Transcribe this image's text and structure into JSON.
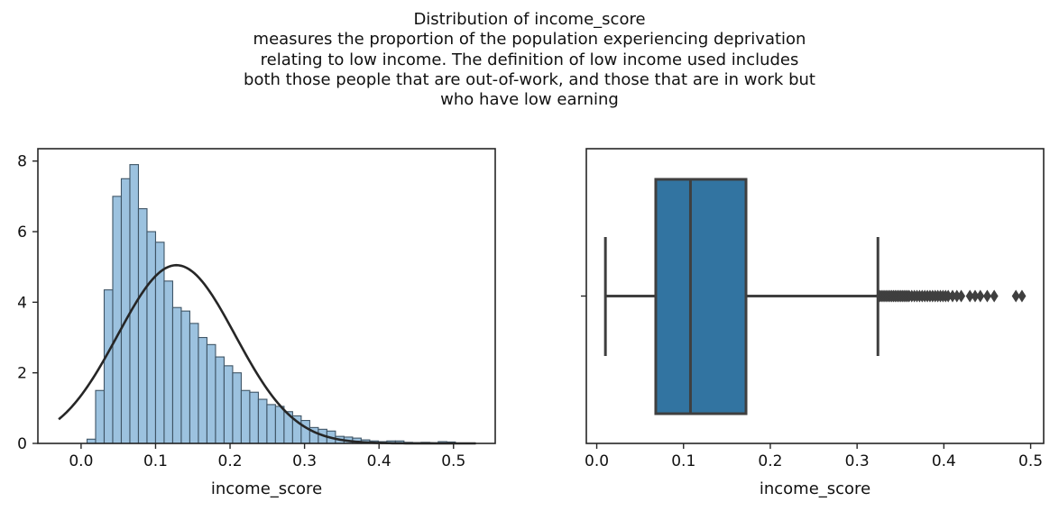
{
  "title": {
    "lines": [
      "Distribution of income_score",
      "measures the proportion of the population experiencing deprivation",
      "relating to low income. The definition of low income used includes",
      "both those people that are out-of-work, and those that are in work but",
      "who have low earning"
    ]
  },
  "chart_data": [
    {
      "type": "histogram",
      "xlabel": "income_score",
      "ylabel": "",
      "xlim": [
        -0.058,
        0.556
      ],
      "ylim": [
        0,
        8.35
      ],
      "xticks": [
        "0.0",
        "0.1",
        "0.2",
        "0.3",
        "0.4",
        "0.5"
      ],
      "xtick_values": [
        0.0,
        0.1,
        0.2,
        0.3,
        0.4,
        0.5
      ],
      "yticks": [
        "0",
        "2",
        "4",
        "6",
        "8"
      ],
      "ytick_values": [
        0,
        2,
        4,
        6,
        8
      ],
      "bin_start": 0.008,
      "bin_width": 0.0115,
      "densities": [
        0.12,
        1.5,
        4.35,
        7.0,
        7.5,
        7.9,
        6.65,
        6.0,
        5.7,
        4.6,
        3.85,
        3.75,
        3.4,
        3.0,
        2.8,
        2.45,
        2.2,
        2.0,
        1.5,
        1.45,
        1.25,
        1.1,
        1.05,
        0.9,
        0.78,
        0.65,
        0.45,
        0.4,
        0.35,
        0.2,
        0.18,
        0.15,
        0.1,
        0.07,
        0.05,
        0.07,
        0.07,
        0.03,
        0.02,
        0.03,
        0.02,
        0.05,
        0.04,
        0.0,
        0.01
      ],
      "fit_curve": {
        "mean": 0.128,
        "std": 0.079,
        "x_start": -0.03,
        "x_end": 0.53
      },
      "colors": {
        "bar_fill": "#9cc2df",
        "bar_edge": "#3f5566",
        "curve": "#262626"
      }
    },
    {
      "type": "box",
      "xlabel": "income_score",
      "xlim": [
        -0.012,
        0.515
      ],
      "xticks": [
        "0.0",
        "0.1",
        "0.2",
        "0.3",
        "0.4",
        "0.5"
      ],
      "xtick_values": [
        0.0,
        0.1,
        0.2,
        0.3,
        0.4,
        0.5
      ],
      "whisker_low": 0.01,
      "q1": 0.068,
      "median": 0.108,
      "q3": 0.172,
      "whisker_high": 0.324,
      "outliers": [
        0.326,
        0.328,
        0.33,
        0.332,
        0.334,
        0.336,
        0.338,
        0.34,
        0.342,
        0.344,
        0.346,
        0.348,
        0.35,
        0.352,
        0.354,
        0.356,
        0.358,
        0.36,
        0.363,
        0.366,
        0.369,
        0.372,
        0.375,
        0.378,
        0.381,
        0.384,
        0.387,
        0.39,
        0.393,
        0.396,
        0.399,
        0.402,
        0.405,
        0.41,
        0.415,
        0.42,
        0.43,
        0.436,
        0.442,
        0.45,
        0.458,
        0.483,
        0.49
      ],
      "colors": {
        "box_fill": "#3274a1",
        "line": "#3f3f3f"
      }
    }
  ]
}
